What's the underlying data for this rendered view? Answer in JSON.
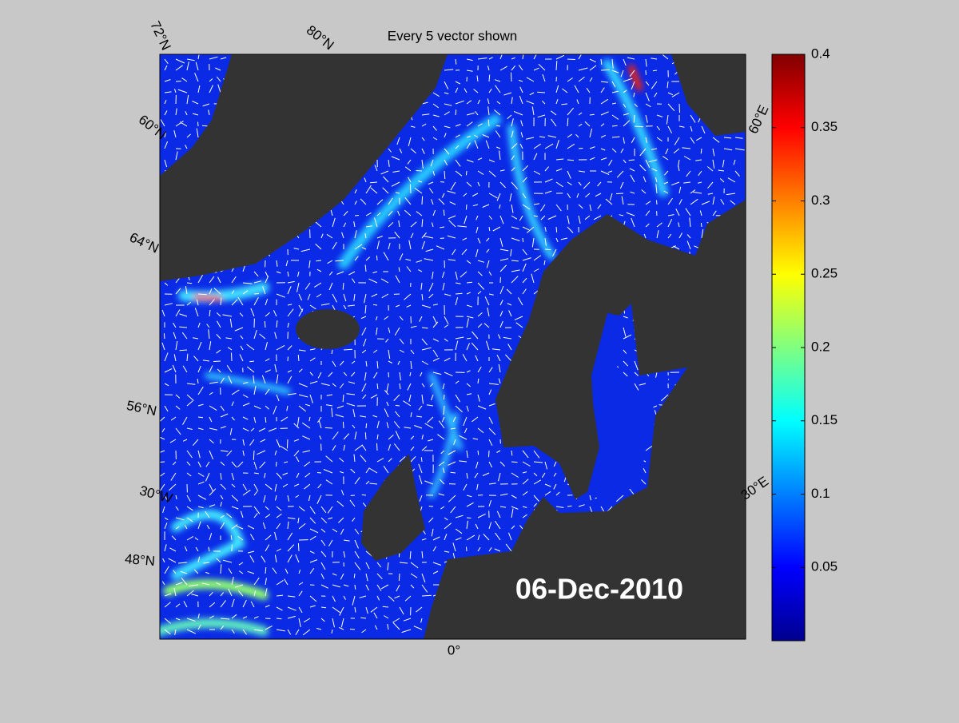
{
  "title": "Every 5 vector shown",
  "map": {
    "graticule_labels": [
      "72°N",
      "80°N",
      "60°N",
      "64°N",
      "56°N",
      "30°W",
      "48°N",
      "0°",
      "30°E",
      "60°E"
    ],
    "date": "06-Dec-2010"
  },
  "colorbar": {
    "lim": [
      0,
      0.4
    ],
    "ticks": [
      0.05,
      0.1,
      0.15,
      0.2,
      0.25,
      0.3,
      0.35,
      0.4
    ]
  }
}
